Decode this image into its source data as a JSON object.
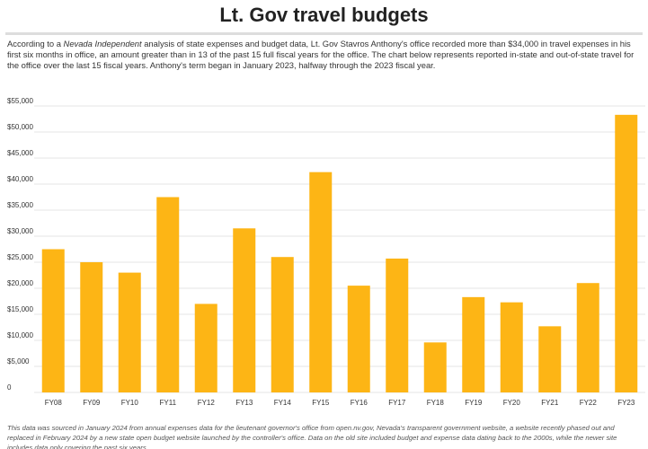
{
  "header": {
    "title": "Lt. Gov travel budgets"
  },
  "description": {
    "part1": "According to a ",
    "publication": "Nevada Independent",
    "part2": " analysis of state expenses and budget data, Lt. Gov Stavros Anthony's office recorded more than $34,000 in travel expenses in his first six months in office, an amount greater than in 13 of the past 15 full fiscal years for the office. The chart below represents reported in-state and out-of-state travel for the office over the last 15 fiscal years. Anthony's term began in January 2023, halfway through the 2023 fiscal year."
  },
  "footnote": {
    "text": "This data was sourced in January 2024 from annual expenses data for the lieutenant governor's office from open.nv.gov, Nevada's transparent government website, a website recently phased out and replaced in February 2024 by a new state open budget website launched by the controller's office. Data on the old site included budget and expense data dating back to the 2000s, while the newer site includes data only covering the past six years."
  },
  "colors": {
    "bar": "#FDB515",
    "grid": "#e6e6e6",
    "tick_text": "#333333"
  },
  "chart_data": {
    "type": "bar",
    "categories": [
      "FY08",
      "FY09",
      "FY10",
      "FY11",
      "FY12",
      "FY13",
      "FY14",
      "FY15",
      "FY16",
      "FY17",
      "FY18",
      "FY19",
      "FY20",
      "FY21",
      "FY22",
      "FY23"
    ],
    "values": [
      27500,
      25000,
      23000,
      37500,
      17000,
      31500,
      26000,
      42300,
      20500,
      25700,
      9600,
      18300,
      17300,
      12700,
      21000,
      53300
    ],
    "title": "",
    "xlabel": "",
    "ylabel": "",
    "ylim": [
      0,
      55000
    ],
    "yticks": [
      0,
      5000,
      10000,
      15000,
      20000,
      25000,
      30000,
      35000,
      40000,
      45000,
      50000,
      55000
    ],
    "ytick_labels": [
      "0",
      "$5,000",
      "$10,000",
      "$15,000",
      "$20,000",
      "$25,000",
      "$30,000",
      "$35,000",
      "$40,000",
      "$45,000",
      "$50,000",
      "$55,000"
    ],
    "grid": true,
    "legend": "none"
  }
}
